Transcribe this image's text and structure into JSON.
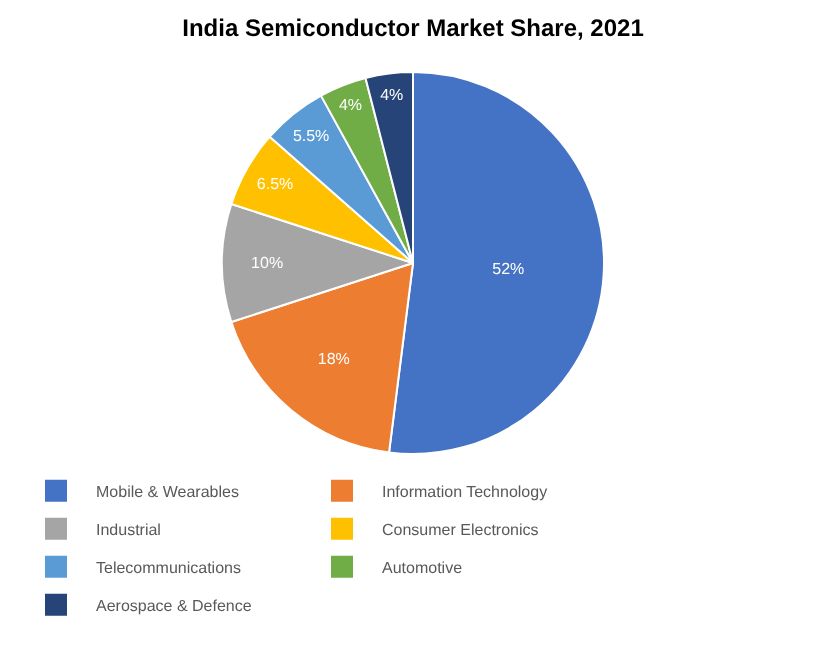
{
  "chart_data": {
    "type": "pie",
    "title": "India Semiconductor Market Share, 2021",
    "categories": [
      "Mobile & Wearables",
      "Information Technology",
      "Industrial",
      "Consumer Electronics",
      "Telecommunications",
      "Automotive",
      "Aerospace & Defence"
    ],
    "values": [
      52,
      18,
      10,
      6.5,
      5.5,
      4,
      4
    ],
    "value_labels": [
      "52%",
      "18%",
      "10%",
      "6.5%",
      "5.5%",
      "4%",
      "4%"
    ],
    "colors": [
      "#4472c4",
      "#ed7d31",
      "#a5a5a5",
      "#ffc000",
      "#5b9bd5",
      "#70ad47",
      "#264478"
    ],
    "legend": "bottom"
  }
}
